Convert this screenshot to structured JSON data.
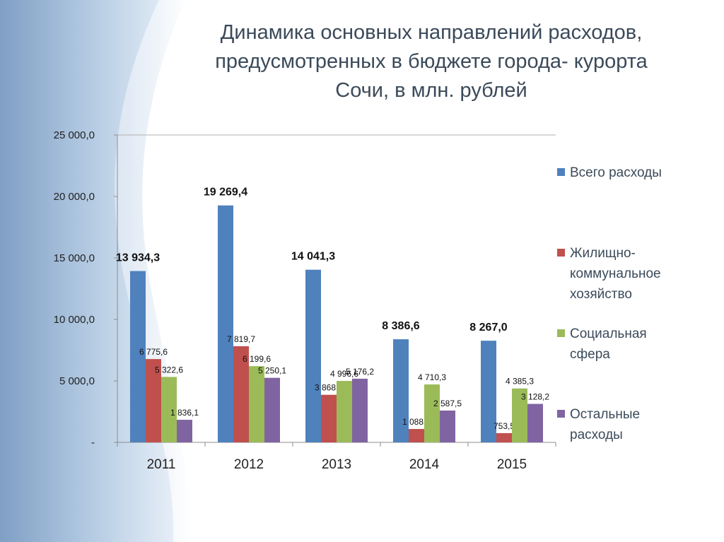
{
  "title_lines": [
    "Динамика основных направлений расходов,",
    "предусмотренных в бюджете города- курорта",
    "Сочи, в млн. рублей"
  ],
  "chart_data": {
    "type": "bar",
    "title": "Динамика основных направлений расходов, предусмотренных в бюджете города- курорта Сочи, в млн. рублей",
    "categories": [
      "2011",
      "2012",
      "2013",
      "2014",
      "2015"
    ],
    "ylim": [
      0,
      25000
    ],
    "y_ticks": [
      0,
      5000,
      10000,
      15000,
      20000,
      25000
    ],
    "y_tick_labels": [
      "-",
      "5 000,0",
      "10 000,0",
      "15 000,0",
      "20 000,0",
      "25 000,0"
    ],
    "grid": false,
    "legend_position": "right",
    "series": [
      {
        "name": "Всего расходы",
        "color": "#4f81bd",
        "values": [
          13934.3,
          19269.4,
          14041.3,
          8386.6,
          8267.0
        ],
        "labels": [
          "13 934,3",
          "19 269,4",
          "14 041,3",
          "8 386,6",
          "8 267,0"
        ]
      },
      {
        "name": "Жилищно-коммунальное хозяйство",
        "name_lines": [
          "Жилищно-",
          "коммунальное",
          "хозяйство"
        ],
        "color": "#c0504d",
        "values": [
          6775.6,
          7819.7,
          3868.5,
          1088.8,
          753.5
        ],
        "labels": [
          "6 775,6",
          "7 819,7",
          "3 868,5",
          "1 088,8",
          "753,5"
        ]
      },
      {
        "name": "Социальная сфера",
        "name_lines": [
          "Социальная",
          "сфера"
        ],
        "color": "#9bbb59",
        "values": [
          5322.6,
          6199.6,
          4996.6,
          4710.3,
          4385.3
        ],
        "labels": [
          "5 322,6",
          "6 199,6",
          "4 996,6",
          "4 710,3",
          "4 385,3"
        ]
      },
      {
        "name": "Остальные расходы",
        "name_lines": [
          "Остальные",
          "расходы"
        ],
        "color": "#8064a2",
        "values": [
          1836.1,
          5250.1,
          5176.2,
          2587.5,
          3128.2
        ],
        "labels": [
          "1 836,1",
          "5 250,1",
          "5 176,2",
          "2 587,5",
          "3 128,2"
        ]
      }
    ]
  }
}
